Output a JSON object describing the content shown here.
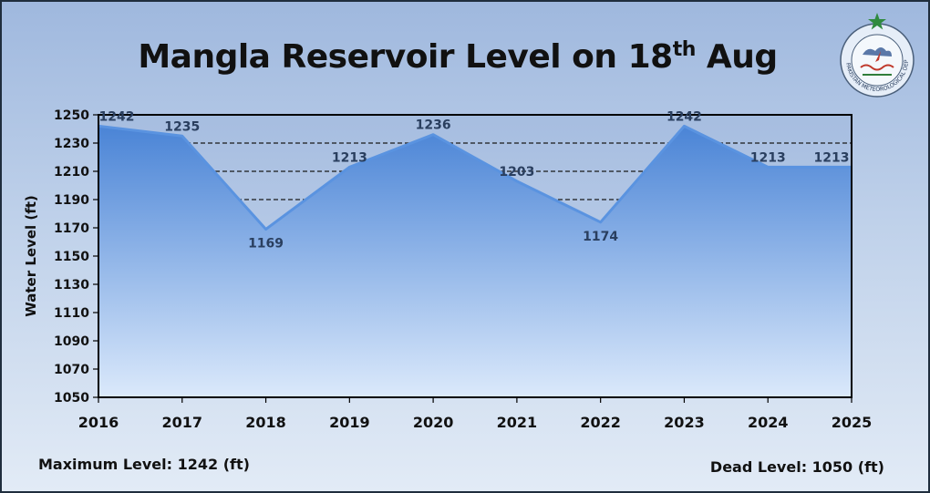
{
  "page": {
    "title_main": "Mangla Reservoir Level on 18",
    "title_sup": "th",
    "title_tail": " Aug",
    "max_level_text": "Maximum Level: 1242 (ft)",
    "dead_level_text": "Dead Level: 1050 (ft)",
    "logo_caption": "PAKISTAN METEOROLOGICAL DEPARTMENT"
  },
  "colors": {
    "area_top": "#4a84d6",
    "area_bottom": "#dbe9fb",
    "line": "#5a93e0",
    "label": "#2a3f5f"
  },
  "chart_data": {
    "type": "area",
    "title": "Mangla Reservoir Level on 18th Aug",
    "xlabel": "",
    "ylabel": "Water Level (ft)",
    "x": [
      2016,
      2017,
      2018,
      2019,
      2020,
      2021,
      2022,
      2023,
      2024,
      2025
    ],
    "series": [
      {
        "values": [
          1242,
          1235,
          1169,
          1213,
          1236,
          1203,
          1174,
          1242,
          1213,
          1213
        ]
      }
    ],
    "ylim": [
      1050,
      1250
    ],
    "yticks": [
      1050,
      1070,
      1090,
      1110,
      1130,
      1150,
      1170,
      1190,
      1210,
      1230,
      1250
    ],
    "gridlines": [
      1190,
      1210,
      1230,
      1250
    ],
    "grid": "dashed horizontal",
    "data_labels": true,
    "legend": "none"
  }
}
